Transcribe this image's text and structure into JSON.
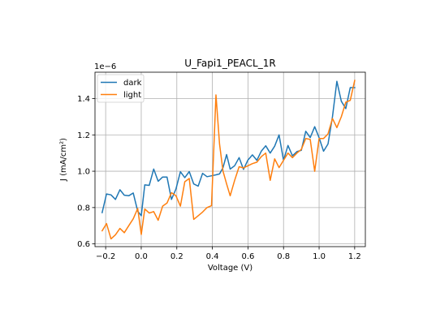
{
  "chart_data": {
    "type": "line",
    "title": "U_Fapi1_PEACL_1R",
    "xlabel": "Voltage (V)",
    "ylabel": "J (mA/cm²)",
    "y_offset_text": "1e−6",
    "xlim": [
      -0.26,
      1.26
    ],
    "ylim": [
      0.585,
      1.545
    ],
    "xticks": [
      -0.2,
      0.0,
      0.2,
      0.4,
      0.6,
      0.8,
      1.0,
      1.2
    ],
    "xtick_labels": [
      "−0.2",
      "0.0",
      "0.2",
      "0.4",
      "0.6",
      "0.8",
      "1.0",
      "1.2"
    ],
    "yticks": [
      0.6,
      0.8,
      1.0,
      1.2,
      1.4
    ],
    "ytick_labels": [
      "0.6",
      "0.8",
      "1.0",
      "1.2",
      "1.4"
    ],
    "grid": true,
    "legend_position": "upper-left",
    "x": [
      -0.22,
      -0.195,
      -0.17,
      -0.145,
      -0.12,
      -0.095,
      -0.07,
      -0.045,
      -0.02,
      0.0,
      0.02,
      0.045,
      0.07,
      0.095,
      0.12,
      0.145,
      0.17,
      0.195,
      0.22,
      0.245,
      0.27,
      0.295,
      0.32,
      0.345,
      0.37,
      0.395,
      0.42,
      0.44,
      0.46,
      0.48,
      0.5,
      0.525,
      0.55,
      0.575,
      0.6,
      0.625,
      0.65,
      0.675,
      0.7,
      0.725,
      0.75,
      0.775,
      0.8,
      0.825,
      0.85,
      0.875,
      0.9,
      0.925,
      0.95,
      0.975,
      1.0,
      1.025,
      1.05,
      1.075,
      1.1,
      1.125,
      1.15,
      1.175,
      1.2
    ],
    "series": [
      {
        "name": "dark",
        "color": "#1f77b4",
        "values": [
          0.772,
          0.875,
          0.87,
          0.845,
          0.898,
          0.868,
          0.865,
          0.88,
          0.78,
          0.755,
          0.925,
          0.922,
          1.012,
          0.945,
          0.968,
          0.968,
          0.845,
          0.902,
          0.997,
          0.965,
          0.998,
          0.93,
          0.918,
          0.988,
          0.97,
          0.975,
          0.98,
          0.985,
          1.02,
          1.092,
          1.012,
          1.03,
          1.075,
          1.01,
          1.062,
          1.09,
          1.06,
          1.11,
          1.14,
          1.1,
          1.138,
          1.2,
          1.06,
          1.142,
          1.085,
          1.108,
          1.115,
          1.22,
          1.185,
          1.245,
          1.185,
          1.11,
          1.15,
          1.3,
          1.495,
          1.385,
          1.345,
          1.46,
          1.46
        ]
      },
      {
        "name": "light",
        "color": "#ff7f0e",
        "values": [
          0.672,
          0.712,
          0.628,
          0.65,
          0.685,
          0.662,
          0.7,
          0.738,
          0.795,
          0.652,
          0.792,
          0.77,
          0.778,
          0.73,
          0.808,
          0.825,
          0.882,
          0.865,
          0.808,
          0.942,
          0.96,
          0.735,
          0.755,
          0.775,
          0.8,
          0.81,
          1.42,
          1.15,
          1.0,
          0.93,
          0.865,
          0.95,
          1.025,
          1.018,
          1.03,
          1.042,
          1.05,
          1.08,
          1.1,
          0.95,
          1.068,
          1.02,
          1.06,
          1.1,
          1.075,
          1.1,
          1.12,
          1.18,
          1.175,
          1.0,
          1.18,
          1.18,
          1.205,
          1.29,
          1.24,
          1.3,
          1.38,
          1.39,
          1.5
        ]
      }
    ]
  }
}
